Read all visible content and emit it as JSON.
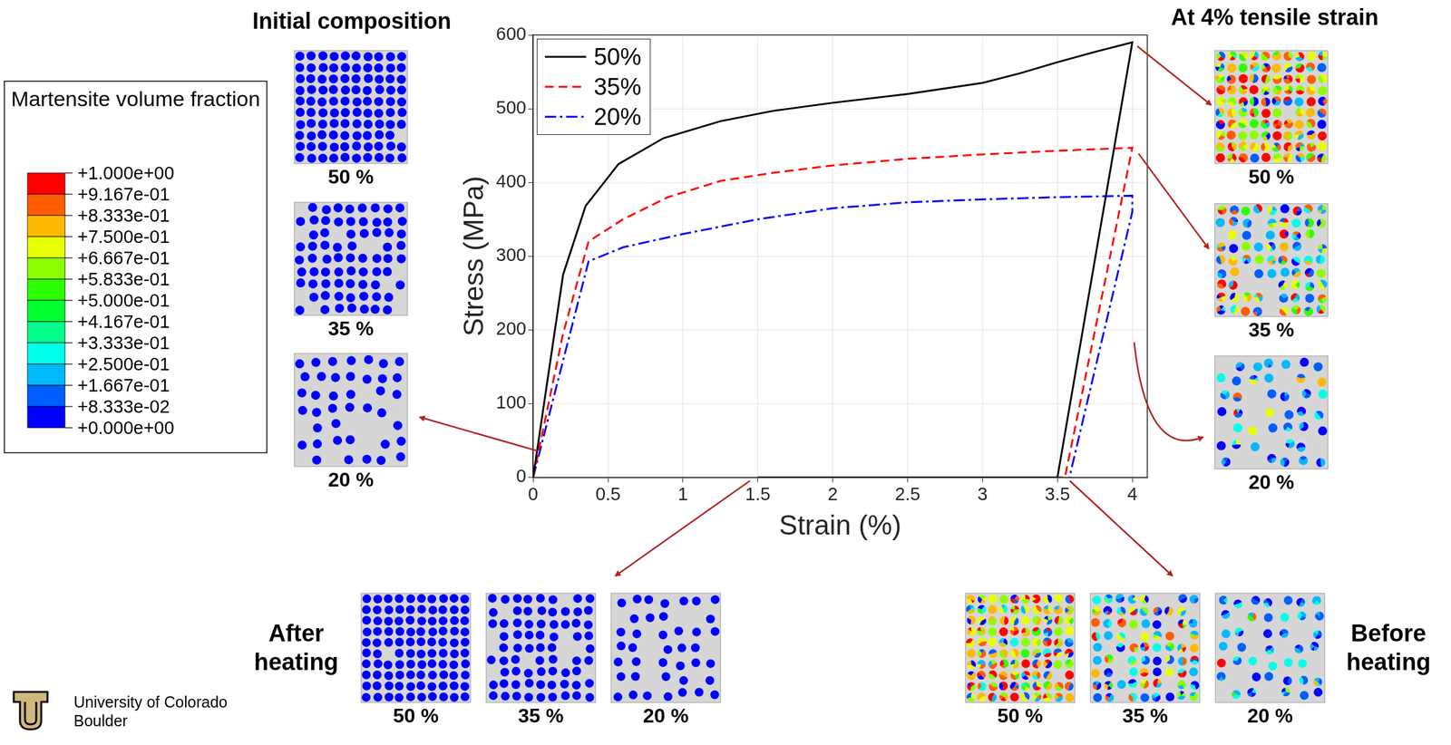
{
  "chart_data": {
    "type": "line",
    "x_label": "Strain (%)",
    "y_label": "Stress (MPa)",
    "xlim": [
      0,
      4.1
    ],
    "ylim": [
      0,
      600
    ],
    "xticks": [
      0,
      0.5,
      1,
      1.5,
      2,
      2.5,
      3,
      3.5,
      4
    ],
    "yticks": [
      0,
      100,
      200,
      300,
      400,
      500,
      600
    ],
    "grid": true,
    "legend": "upper left",
    "series": [
      {
        "name": "50%",
        "color": "#000000",
        "line_style": "solid",
        "x": [
          0,
          0.2,
          0.35,
          0.57,
          0.87,
          1.25,
          1.6,
          2,
          2.5,
          3,
          3.25,
          3.5,
          3.75,
          4,
          3.5,
          1.5
        ],
        "values": [
          0,
          275,
          368,
          425,
          460,
          483,
          497,
          508,
          520,
          535,
          548,
          563,
          577,
          590,
          0,
          0
        ]
      },
      {
        "name": "35%",
        "color": "#ff0000",
        "line_style": "dashed",
        "x": [
          0,
          0.2,
          0.37,
          0.6,
          0.9,
          1.25,
          1.6,
          2,
          2.5,
          3,
          3.5,
          4,
          3.55,
          3.0
        ],
        "values": [
          0,
          195,
          320,
          350,
          380,
          402,
          413,
          423,
          432,
          438,
          443,
          447,
          0,
          0
        ]
      },
      {
        "name": "20%",
        "color": "#0000ff",
        "line_style": "dashdot",
        "x": [
          0,
          0.37,
          0.6,
          1,
          1.5,
          2,
          2.5,
          3,
          3.5,
          4,
          4,
          3.58
        ],
        "values": [
          0,
          293,
          312,
          330,
          350,
          365,
          373,
          377,
          380,
          382,
          360,
          0
        ]
      }
    ]
  },
  "figure": {
    "colorbar": {
      "title": "Martensite volume fraction",
      "ticks": [
        {
          "value": 1,
          "label": "+1.000e+00"
        },
        {
          "value": 0.91667,
          "label": "+9.167e-01"
        },
        {
          "value": 0.83333,
          "label": "+8.333e-01"
        },
        {
          "value": 0.75,
          "label": "+7.500e-01"
        },
        {
          "value": 0.66667,
          "label": "+6.667e-01"
        },
        {
          "value": 0.58333,
          "label": "+5.833e-01"
        },
        {
          "value": 0.5,
          "label": "+5.000e-01"
        },
        {
          "value": 0.41667,
          "label": "+4.167e-01"
        },
        {
          "value": 0.33333,
          "label": "+3.333e-01"
        },
        {
          "value": 0.25,
          "label": "+2.500e-01"
        },
        {
          "value": 0.16667,
          "label": "+1.667e-01"
        },
        {
          "value": 0.083333,
          "label": "+8.333e-02"
        },
        {
          "value": 0,
          "label": "+0.000e+00"
        }
      ],
      "colors": [
        "#ff0000",
        "#ff5d00",
        "#ffb900",
        "#e8ff00",
        "#8bff00",
        "#2eff00",
        "#00ff2e",
        "#00ff8b",
        "#00ffe8",
        "#00b9ff",
        "#005dff",
        "#0000ff"
      ]
    },
    "groups": [
      {
        "title": "Initial composition",
        "panels": [
          {
            "label": "50 %",
            "fraction": 50
          },
          {
            "label": "35 %",
            "fraction": 35
          },
          {
            "label": "20 %",
            "fraction": 20
          }
        ]
      },
      {
        "title": "At 4% tensile strain",
        "panels": [
          {
            "label": "50 %",
            "fraction": 50
          },
          {
            "label": "35 %",
            "fraction": 35
          },
          {
            "label": "20 %",
            "fraction": 20
          }
        ]
      },
      {
        "title": "After heating",
        "panels": [
          {
            "label": "50 %",
            "fraction": 50
          },
          {
            "label": "35 %",
            "fraction": 35
          },
          {
            "label": "20 %",
            "fraction": 20
          }
        ]
      },
      {
        "title": "Before heating",
        "panels": [
          {
            "label": "50 %",
            "fraction": 50
          },
          {
            "label": "35 %",
            "fraction": 35
          },
          {
            "label": "20 %",
            "fraction": 20
          }
        ]
      }
    ],
    "logo": [
      "University of Colorado",
      "Boulder"
    ]
  }
}
